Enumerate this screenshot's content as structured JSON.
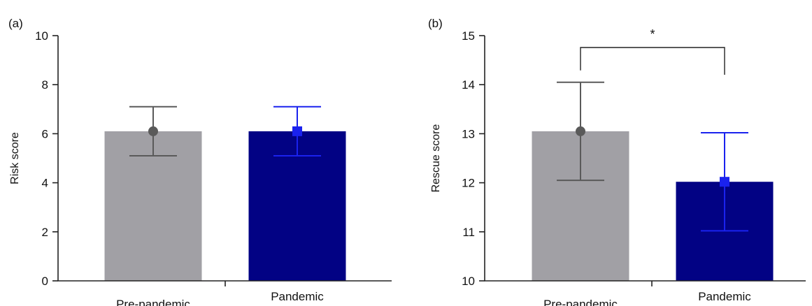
{
  "chart_data": [
    {
      "panel_label": "(a)",
      "type": "bar",
      "categories": [
        "Pre-pandemic",
        "Pandemic"
      ],
      "values": [
        6.1,
        6.1
      ],
      "error": [
        1.0,
        1.0
      ],
      "colors": [
        "#a1a0a5",
        "#020284"
      ],
      "error_colors": [
        "#5a5a5a",
        "#1a22ee"
      ],
      "markers": [
        "circle",
        "square"
      ],
      "ylabel": "Risk score",
      "ylim": [
        0,
        10
      ],
      "yticks": [
        0,
        2,
        4,
        6,
        8,
        10
      ],
      "grid": false,
      "legend": "none"
    },
    {
      "panel_label": "(b)",
      "type": "bar",
      "categories": [
        "Pre-pandemic",
        "Pandemic"
      ],
      "values": [
        13.05,
        12.02
      ],
      "error": [
        1.0,
        1.0
      ],
      "colors": [
        "#a1a0a5",
        "#020284"
      ],
      "error_colors": [
        "#5a5a5a",
        "#1a22ee"
      ],
      "markers": [
        "circle",
        "square"
      ],
      "ylabel": "Rescue score",
      "ylim": [
        10,
        15
      ],
      "yticks": [
        10,
        11,
        12,
        13,
        14,
        15
      ],
      "grid": false,
      "legend": "none",
      "significance": {
        "label": "*",
        "between": [
          "Pre-pandemic",
          "Pandemic"
        ]
      }
    }
  ]
}
